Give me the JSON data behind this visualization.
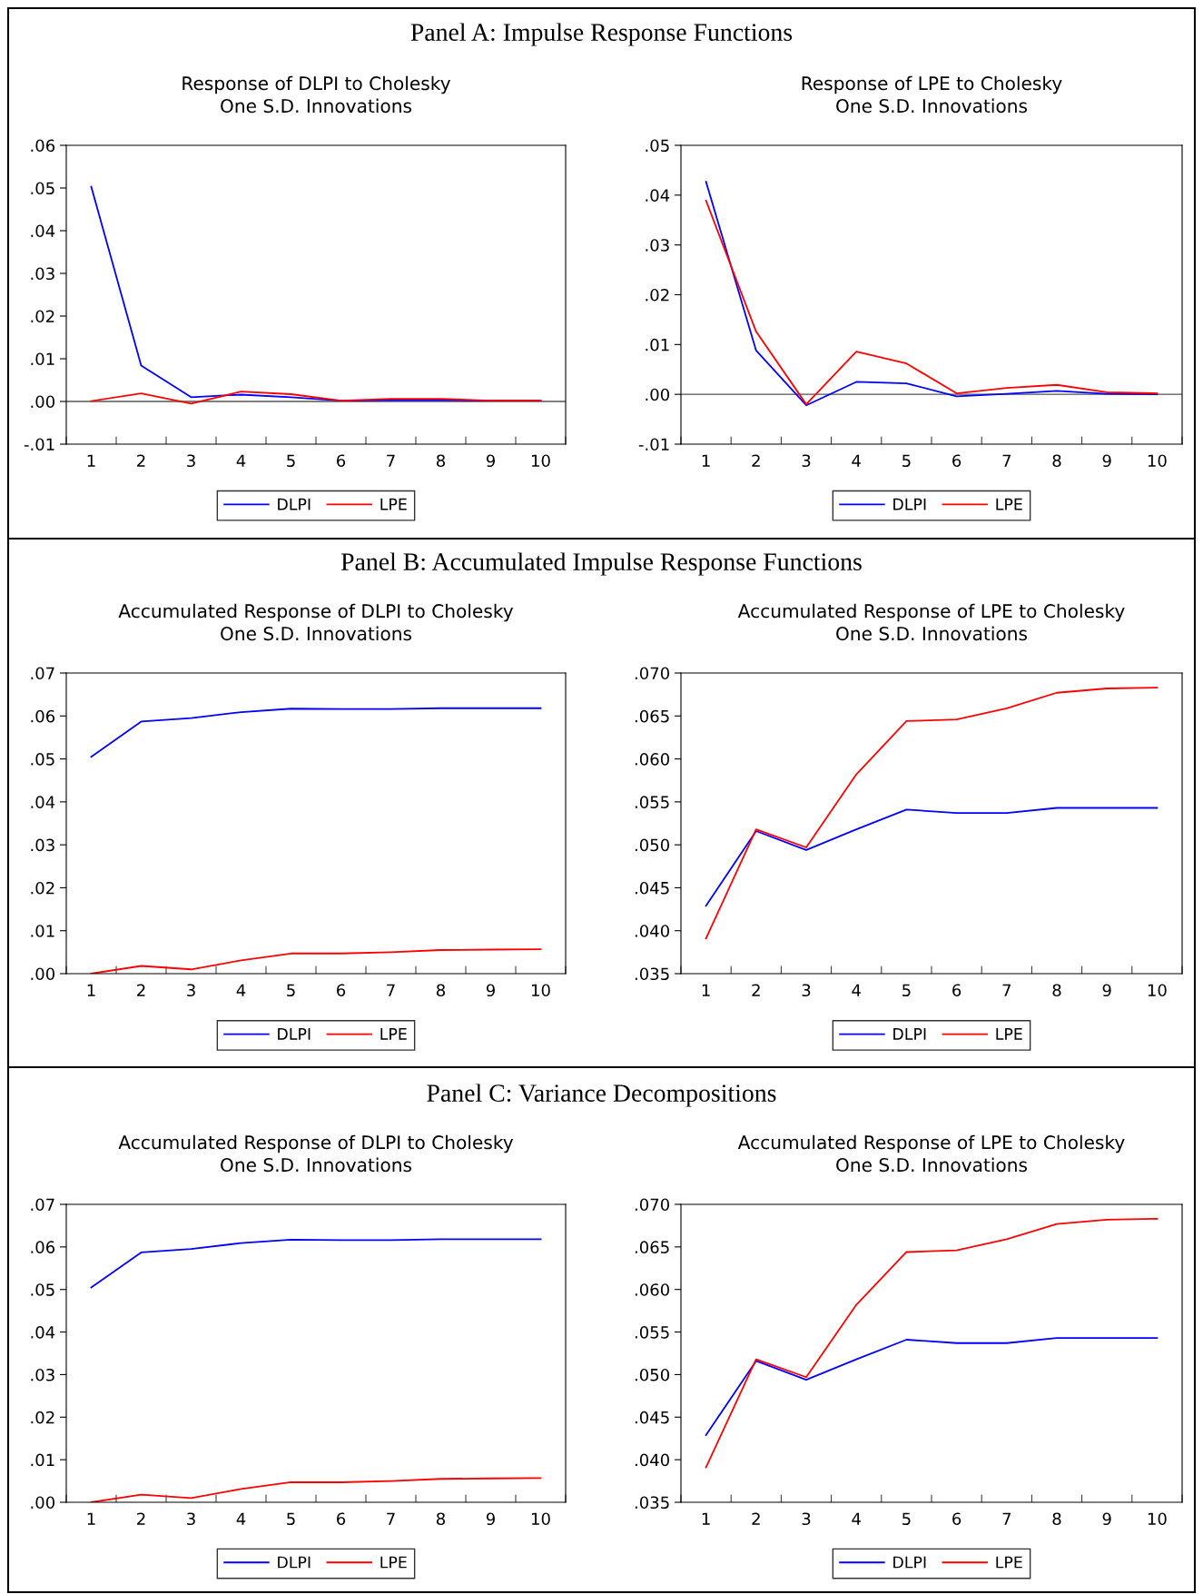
{
  "chart_data": [
    {
      "type": "line",
      "title": "Response of DLPI to Cholesky\nOne S.D. Innovations",
      "annotations": [
        "Panel A: Impulse Response Functions"
      ],
      "categories": [
        "1",
        "2",
        "3",
        "4",
        "5",
        "6",
        "7",
        "8",
        "9",
        "10"
      ],
      "series": [
        {
          "name": "DLPI",
          "color": "#0000ff",
          "values": [
            0.0503,
            0.0084,
            0.001,
            0.0016,
            0.001,
            0.0002,
            0.0003,
            0.0003,
            0.0002,
            0.0002
          ]
        },
        {
          "name": "LPE",
          "color": "#ff0000",
          "values": [
            0.0001,
            0.0019,
            -0.0005,
            0.0023,
            0.0017,
            0.0002,
            0.0006,
            0.0006,
            0.0002,
            0.0002
          ]
        }
      ],
      "ylim": [
        -0.01,
        0.06
      ],
      "yticks": [
        {
          "value": -0.01,
          "label": "-.01"
        },
        {
          "value": 0,
          "label": ".00"
        },
        {
          "value": 0.01,
          "label": ".01"
        },
        {
          "value": 0.02,
          "label": ".02"
        },
        {
          "value": 0.03,
          "label": ".03"
        },
        {
          "value": 0.04,
          "label": ".04"
        },
        {
          "value": 0.05,
          "label": ".05"
        },
        {
          "value": 0.06,
          "label": ".06"
        }
      ],
      "ref_lines": [
        {
          "axis": "y",
          "value": 0,
          "color": "#555555"
        }
      ],
      "legend": "bottom"
    },
    {
      "type": "line",
      "title": "Response of LPE to Cholesky\nOne S.D. Innovations",
      "categories": [
        "1",
        "2",
        "3",
        "4",
        "5",
        "6",
        "7",
        "8",
        "9",
        "10"
      ],
      "series": [
        {
          "name": "DLPI",
          "color": "#0000ff",
          "values": [
            0.0427,
            0.0088,
            -0.0022,
            0.0025,
            0.0022,
            -0.0004,
            0.0001,
            0.0007,
            0.0001,
            0.0
          ]
        },
        {
          "name": "LPE",
          "color": "#ff0000",
          "values": [
            0.0389,
            0.0126,
            -0.002,
            0.0086,
            0.0062,
            0.0002,
            0.0013,
            0.0019,
            0.0004,
            0.0002
          ]
        }
      ],
      "ylim": [
        -0.01,
        0.05
      ],
      "yticks": [
        {
          "value": -0.01,
          "label": "-.01"
        },
        {
          "value": 0,
          "label": ".00"
        },
        {
          "value": 0.01,
          "label": ".01"
        },
        {
          "value": 0.02,
          "label": ".02"
        },
        {
          "value": 0.03,
          "label": ".03"
        },
        {
          "value": 0.04,
          "label": ".04"
        },
        {
          "value": 0.05,
          "label": ".05"
        }
      ],
      "ref_lines": [
        {
          "axis": "y",
          "value": 0,
          "color": "#555555"
        }
      ],
      "legend": "bottom"
    },
    {
      "type": "line",
      "title": "Accumulated Response of DLPI to Cholesky\nOne S.D. Innovations",
      "annotations": [
        "Panel B: Accumulated Impulse Response Functions"
      ],
      "categories": [
        "1",
        "2",
        "3",
        "4",
        "5",
        "6",
        "7",
        "8",
        "9",
        "10"
      ],
      "series": [
        {
          "name": "DLPI",
          "color": "#0000ff",
          "values": [
            0.0505,
            0.0587,
            0.0595,
            0.0609,
            0.0617,
            0.0616,
            0.0616,
            0.0618,
            0.0618,
            0.0618
          ]
        },
        {
          "name": "LPE",
          "color": "#ff0000",
          "values": [
            0.0,
            0.0018,
            0.001,
            0.0031,
            0.0047,
            0.0047,
            0.005,
            0.0055,
            0.0056,
            0.0057
          ]
        }
      ],
      "ylim": [
        0,
        0.07
      ],
      "yticks": [
        {
          "value": 0,
          "label": ".00"
        },
        {
          "value": 0.01,
          "label": ".01"
        },
        {
          "value": 0.02,
          "label": ".02"
        },
        {
          "value": 0.03,
          "label": ".03"
        },
        {
          "value": 0.04,
          "label": ".04"
        },
        {
          "value": 0.05,
          "label": ".05"
        },
        {
          "value": 0.06,
          "label": ".06"
        },
        {
          "value": 0.07,
          "label": ".07"
        }
      ],
      "legend": "bottom"
    },
    {
      "type": "line",
      "title": "Accumulated Response of LPE to Cholesky\nOne S.D. Innovations",
      "categories": [
        "1",
        "2",
        "3",
        "4",
        "5",
        "6",
        "7",
        "8",
        "9",
        "10"
      ],
      "series": [
        {
          "name": "DLPI",
          "color": "#0000ff",
          "values": [
            0.0429,
            0.0516,
            0.0494,
            0.0518,
            0.0541,
            0.0537,
            0.0537,
            0.0543,
            0.0543,
            0.0543
          ]
        },
        {
          "name": "LPE",
          "color": "#ff0000",
          "values": [
            0.0391,
            0.0518,
            0.0497,
            0.0582,
            0.0644,
            0.0646,
            0.0659,
            0.0677,
            0.0682,
            0.0683
          ]
        }
      ],
      "ylim": [
        0.035,
        0.07
      ],
      "yticks": [
        {
          "value": 0.035,
          "label": ".035"
        },
        {
          "value": 0.04,
          "label": ".040"
        },
        {
          "value": 0.045,
          "label": ".045"
        },
        {
          "value": 0.05,
          "label": ".050"
        },
        {
          "value": 0.055,
          "label": ".055"
        },
        {
          "value": 0.06,
          "label": ".060"
        },
        {
          "value": 0.065,
          "label": ".065"
        },
        {
          "value": 0.07,
          "label": ".070"
        }
      ],
      "legend": "bottom"
    },
    {
      "type": "line",
      "title": "Accumulated Response of DLPI to Cholesky\nOne S.D. Innovations",
      "annotations": [
        "Panel C: Variance Decompositions"
      ],
      "categories": [
        "1",
        "2",
        "3",
        "4",
        "5",
        "6",
        "7",
        "8",
        "9",
        "10"
      ],
      "series": [
        {
          "name": "DLPI",
          "color": "#0000ff",
          "values": [
            0.0505,
            0.0587,
            0.0595,
            0.0609,
            0.0617,
            0.0616,
            0.0616,
            0.0618,
            0.0618,
            0.0618
          ]
        },
        {
          "name": "LPE",
          "color": "#ff0000",
          "values": [
            0.0,
            0.0018,
            0.001,
            0.0031,
            0.0047,
            0.0047,
            0.005,
            0.0055,
            0.0056,
            0.0057
          ]
        }
      ],
      "ylim": [
        0,
        0.07
      ],
      "yticks": [
        {
          "value": 0,
          "label": ".00"
        },
        {
          "value": 0.01,
          "label": ".01"
        },
        {
          "value": 0.02,
          "label": ".02"
        },
        {
          "value": 0.03,
          "label": ".03"
        },
        {
          "value": 0.04,
          "label": ".04"
        },
        {
          "value": 0.05,
          "label": ".05"
        },
        {
          "value": 0.06,
          "label": ".06"
        },
        {
          "value": 0.07,
          "label": ".07"
        }
      ],
      "legend": "bottom"
    },
    {
      "type": "line",
      "title": "Accumulated Response of LPE to Cholesky\nOne S.D. Innovations",
      "categories": [
        "1",
        "2",
        "3",
        "4",
        "5",
        "6",
        "7",
        "8",
        "9",
        "10"
      ],
      "series": [
        {
          "name": "DLPI",
          "color": "#0000ff",
          "values": [
            0.0429,
            0.0516,
            0.0494,
            0.0518,
            0.0541,
            0.0537,
            0.0537,
            0.0543,
            0.0543,
            0.0543
          ]
        },
        {
          "name": "LPE",
          "color": "#ff0000",
          "values": [
            0.0391,
            0.0518,
            0.0497,
            0.0582,
            0.0644,
            0.0646,
            0.0659,
            0.0677,
            0.0682,
            0.0683
          ]
        }
      ],
      "ylim": [
        0.035,
        0.07
      ],
      "yticks": [
        {
          "value": 0.035,
          "label": ".035"
        },
        {
          "value": 0.04,
          "label": ".040"
        },
        {
          "value": 0.045,
          "label": ".045"
        },
        {
          "value": 0.05,
          "label": ".050"
        },
        {
          "value": 0.055,
          "label": ".055"
        },
        {
          "value": 0.06,
          "label": ".060"
        },
        {
          "value": 0.065,
          "label": ".065"
        },
        {
          "value": 0.07,
          "label": ".070"
        }
      ],
      "legend": "bottom"
    }
  ]
}
